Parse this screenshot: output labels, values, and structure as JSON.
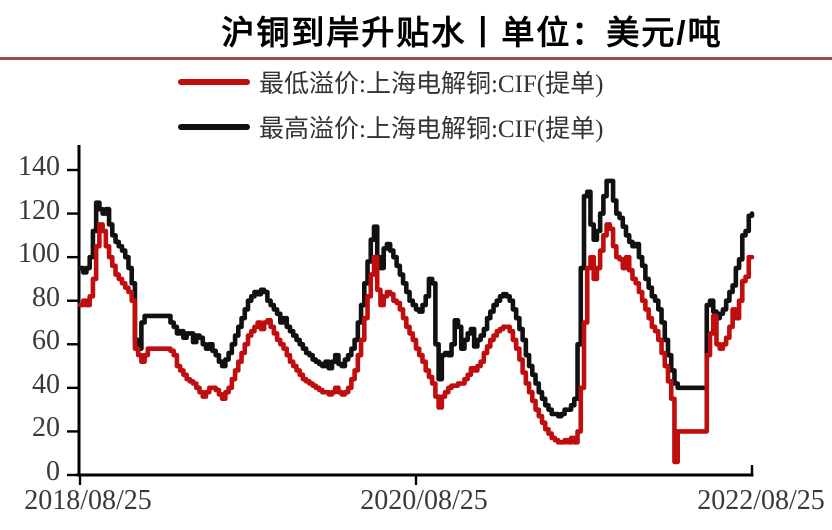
{
  "title": "沪铜到岸升贴水丨单位：美元/吨",
  "legend": [
    {
      "label": "最低溢价:上海电解铜:CIF(提单)",
      "color": "#c00d0d"
    },
    {
      "label": "最高溢价:上海电解铜:CIF(提单)",
      "color": "#111111"
    }
  ],
  "colors": {
    "divider": "#a04a50",
    "axis": "#000000",
    "tick_label": "#3a3a3a",
    "series_min": "#c00d0d",
    "series_max": "#111111"
  },
  "chart_data": {
    "type": "line",
    "title": "沪铜到岸升贴水丨单位：美元/吨",
    "unit": "美元/吨",
    "ylim": [
      0,
      140
    ],
    "yticks": [
      0,
      20,
      40,
      60,
      80,
      100,
      120,
      140
    ],
    "xticks": [
      "2018/08/25",
      "2020/08/25",
      "2022/08/25"
    ],
    "x_description": "weekly observations from 2018/08/25 to 2022/08/25",
    "grid": false,
    "legend_position": "top",
    "series": [
      {
        "name": "最高溢价:上海电解铜:CIF(提单)",
        "color": "#111111",
        "values": [
          95,
          93,
          95,
          100,
          112,
          125,
          122,
          120,
          122,
          115,
          110,
          107,
          105,
          103,
          100,
          95,
          88,
          62,
          58,
          70,
          73,
          73,
          73,
          73,
          73,
          73,
          73,
          73,
          70,
          68,
          65,
          66,
          63,
          65,
          65,
          61,
          64,
          63,
          60,
          58,
          60,
          57,
          55,
          52,
          50,
          53,
          56,
          60,
          64,
          68,
          72,
          76,
          80,
          82,
          84,
          83,
          85,
          84,
          80,
          78,
          76,
          74,
          70,
          72,
          68,
          66,
          64,
          62,
          60,
          58,
          56,
          55,
          53,
          52,
          51,
          50,
          52,
          49,
          52,
          55,
          51,
          50,
          53,
          55,
          58,
          62,
          70,
          78,
          88,
          98,
          108,
          114,
          100,
          95,
          104,
          106,
          103,
          100,
          96,
          92,
          88,
          84,
          80,
          78,
          76,
          75,
          78,
          82,
          90,
          88,
          60,
          44,
          55,
          56,
          55,
          60,
          71,
          68,
          58,
          62,
          65,
          67,
          59,
          62,
          64,
          67,
          72,
          75,
          78,
          80,
          82,
          83,
          82,
          80,
          76,
          72,
          67,
          62,
          55,
          50,
          46,
          42,
          38,
          35,
          32,
          30,
          28,
          28,
          27,
          28,
          30,
          30,
          32,
          35,
          60,
          95,
          128,
          130,
          115,
          108,
          112,
          120,
          128,
          135,
          135,
          126,
          120,
          118,
          114,
          110,
          107,
          105,
          106,
          100,
          96,
          90,
          86,
          82,
          80,
          76,
          70,
          62,
          55,
          48,
          42,
          40,
          40,
          40,
          40,
          40,
          40,
          40,
          40,
          40,
          78,
          80,
          75,
          72,
          74,
          76,
          80,
          84,
          87,
          95,
          99,
          110,
          112,
          119,
          120
        ]
      },
      {
        "name": "最低溢价:上海电解铜:CIF(提单)",
        "color": "#c00d0d",
        "values": [
          78,
          80,
          78,
          82,
          90,
          105,
          115,
          112,
          105,
          100,
          96,
          92,
          90,
          88,
          86,
          84,
          80,
          58,
          55,
          52,
          55,
          58,
          58,
          58,
          58,
          58,
          58,
          58,
          57,
          55,
          50,
          48,
          46,
          44,
          43,
          42,
          40,
          38,
          36,
          38,
          40,
          40,
          39,
          37,
          35,
          38,
          40,
          44,
          48,
          52,
          56,
          60,
          64,
          66,
          68,
          70,
          67,
          70,
          71,
          68,
          65,
          62,
          60,
          58,
          55,
          52,
          50,
          48,
          46,
          44,
          43,
          42,
          41,
          40,
          39,
          38,
          38,
          37,
          38,
          40,
          38,
          37,
          38,
          40,
          44,
          48,
          55,
          62,
          72,
          82,
          92,
          100,
          85,
          78,
          82,
          84,
          83,
          80,
          79,
          76,
          72,
          68,
          65,
          62,
          58,
          55,
          52,
          48,
          45,
          42,
          36,
          31,
          36,
          38,
          40,
          41,
          41,
          42,
          42,
          44,
          46,
          49,
          48,
          50,
          52,
          56,
          59,
          62,
          64,
          66,
          67,
          68,
          68,
          66,
          62,
          58,
          53,
          47,
          42,
          38,
          34,
          30,
          27,
          24,
          21,
          19,
          17,
          16,
          15,
          15,
          16,
          15,
          17,
          15,
          20,
          40,
          70,
          95,
          100,
          90,
          95,
          103,
          110,
          115,
          113,
          105,
          100,
          99,
          95,
          100,
          94,
          90,
          88,
          84,
          80,
          76,
          72,
          68,
          66,
          62,
          56,
          50,
          43,
          35,
          6,
          20,
          20,
          20,
          20,
          20,
          20,
          20,
          20,
          20,
          55,
          65,
          73,
          60,
          58,
          60,
          63,
          68,
          76,
          72,
          80,
          89,
          91,
          100,
          100
        ]
      }
    ]
  }
}
